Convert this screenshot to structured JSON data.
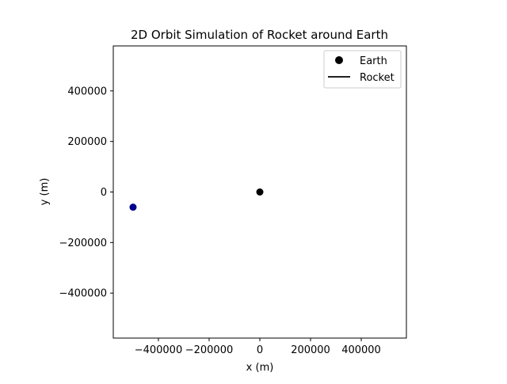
{
  "chart_data": {
    "type": "scatter",
    "title": "2D Orbit Simulation of Rocket around Earth",
    "xlabel": "x (m)",
    "ylabel": "y (m)",
    "xlim": [
      -578000,
      578000
    ],
    "ylim": [
      -578000,
      578000
    ],
    "xticks": [
      {
        "value": -400000,
        "label": "−400000"
      },
      {
        "value": -200000,
        "label": "−200000"
      },
      {
        "value": 0,
        "label": "0"
      },
      {
        "value": 200000,
        "label": "200000"
      },
      {
        "value": 400000,
        "label": "400000"
      }
    ],
    "yticks": [
      {
        "value": 400000,
        "label": "400000"
      },
      {
        "value": 200000,
        "label": "200000"
      },
      {
        "value": 0,
        "label": "0"
      },
      {
        "value": -200000,
        "label": "−200000"
      },
      {
        "value": -400000,
        "label": "−400000"
      }
    ],
    "grid": false,
    "legend_position": "top-right",
    "series": [
      {
        "name": "Earth",
        "kind": "marker",
        "color": "#000000",
        "points": [
          [
            0,
            0
          ]
        ]
      },
      {
        "name": "Rocket",
        "kind": "line",
        "color": "#000000",
        "points": []
      },
      {
        "kind": "marker",
        "color": "#00008b",
        "points": [
          [
            -500000,
            -60000
          ]
        ]
      }
    ]
  }
}
